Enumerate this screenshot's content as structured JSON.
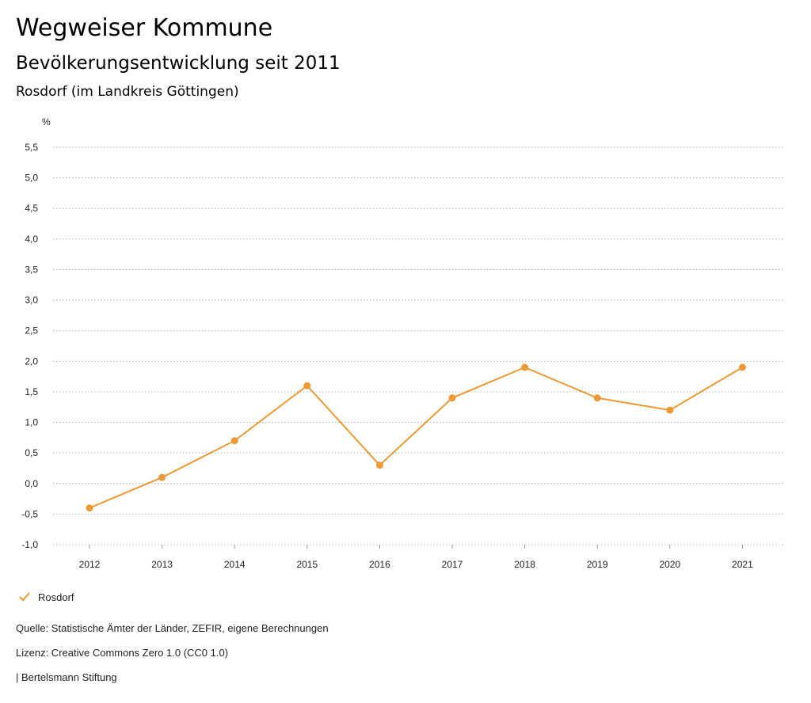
{
  "header": {
    "title": "Wegweiser Kommune",
    "subtitle": "Bevölkerungsentwicklung seit 2011",
    "place": "Rosdorf (im Landkreis Göttingen)"
  },
  "chart_data": {
    "type": "line",
    "title": "Bevölkerungsentwicklung seit 2011",
    "ylabel": "%",
    "xlabel": "",
    "categories": [
      "2012",
      "2013",
      "2014",
      "2015",
      "2016",
      "2017",
      "2018",
      "2019",
      "2020",
      "2021"
    ],
    "series": [
      {
        "name": "Rosdorf",
        "values": [
          -0.4,
          0.1,
          0.7,
          1.6,
          0.3,
          1.4,
          1.9,
          1.4,
          1.2,
          1.9
        ]
      }
    ],
    "ylim": [
      -1.0,
      5.5
    ],
    "yticks": [
      "-1,0",
      "-0,5",
      "0,0",
      "0,5",
      "1,0",
      "1,5",
      "2,0",
      "2,5",
      "3,0",
      "3,5",
      "4,0",
      "4,5",
      "5,0",
      "5,5"
    ],
    "grid": true,
    "legend": "bottom-left",
    "color": "#ec9a35"
  },
  "legend": {
    "label": "Rosdorf",
    "icon": "check-icon"
  },
  "footer": {
    "source": "Quelle: Statistische Ämter der Länder, ZEFIR, eigene Berechnungen",
    "license": "Lizenz: Creative Commons Zero 1.0 (CC0 1.0)",
    "credit": "| Bertelsmann Stiftung"
  }
}
